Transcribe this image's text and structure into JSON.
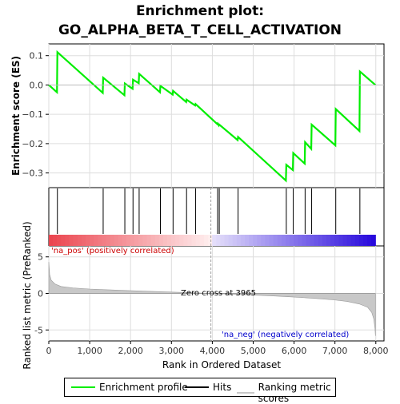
{
  "title_line1": "Enrichment plot:",
  "title_line2": "GO_ALPHA_BETA_T_CELL_ACTIVATION",
  "colors": {
    "es_line": "#00ee00",
    "hits": "#000000",
    "metric_fill": "#c8c8c8",
    "pos_label": "#cc0000",
    "neg_label": "#0000cc",
    "zero_line": "#a0a0a0"
  },
  "labels": {
    "pos": "'na_pos' (positively correlated)",
    "neg": "'na_neg' (negatively correlated)",
    "zero_cross": "Zero cross at 3965"
  },
  "legend": {
    "enrichment": "Enrichment profile",
    "hits": "Hits",
    "ranking": "Ranking metric scores"
  },
  "chart_data": [
    {
      "type": "line",
      "name": "enrichment-profile",
      "ylabel": "Enrichment score (ES)",
      "xlim": [
        0,
        8200
      ],
      "ylim": [
        -0.35,
        0.14
      ],
      "y_ticks": [
        0.1,
        0.0,
        -0.1,
        -0.2,
        -0.3
      ],
      "y_tick_labels": [
        "0.1",
        "0.0",
        "−0.1",
        "−0.2",
        "−0.3"
      ],
      "x": [
        0,
        200,
        210,
        1320,
        1330,
        1850,
        1860,
        2050,
        2060,
        2200,
        2210,
        2720,
        2730,
        3030,
        3040,
        3360,
        3370,
        3580,
        3590,
        4120,
        4130,
        4160,
        4170,
        4620,
        4630,
        5800,
        5810,
        5970,
        5980,
        6260,
        6270,
        6420,
        6430,
        7010,
        7020,
        7600,
        7610,
        7990
      ],
      "y": [
        0.0,
        -0.025,
        0.112,
        -0.027,
        0.025,
        -0.035,
        0.005,
        -0.013,
        0.018,
        0.006,
        0.038,
        -0.025,
        -0.003,
        -0.033,
        -0.02,
        -0.058,
        -0.05,
        -0.07,
        -0.065,
        -0.133,
        -0.131,
        -0.138,
        -0.135,
        -0.188,
        -0.177,
        -0.326,
        -0.272,
        -0.29,
        -0.232,
        -0.268,
        -0.195,
        -0.218,
        -0.135,
        -0.206,
        -0.082,
        -0.157,
        0.046,
        0.0
      ]
    },
    {
      "type": "scatter",
      "name": "hits",
      "x": [
        210,
        1330,
        1860,
        2060,
        2210,
        2730,
        3040,
        3370,
        3590,
        4130,
        4170,
        4630,
        5810,
        5980,
        6270,
        6430,
        7020,
        7610
      ]
    },
    {
      "type": "area",
      "name": "ranking-metric",
      "xlabel": "Rank in Ordered Dataset",
      "ylabel": "Ranked list metric (PreRanked)",
      "xlim": [
        0,
        8200
      ],
      "ylim": [
        -6.5,
        6.5
      ],
      "x_ticks": [
        0,
        1000,
        2000,
        3000,
        4000,
        5000,
        6000,
        7000,
        8000
      ],
      "x_tick_labels": [
        "0",
        "1,000",
        "2,000",
        "3,000",
        "4,000",
        "5,000",
        "6,000",
        "7,000",
        "8,000"
      ],
      "y_ticks": [
        5,
        0,
        -5
      ],
      "y_tick_labels": [
        "5",
        "0",
        "-5"
      ],
      "x": [
        0,
        20,
        60,
        150,
        300,
        600,
        1000,
        1500,
        2000,
        2500,
        3000,
        3500,
        3965,
        4500,
        5000,
        5500,
        6000,
        6500,
        7000,
        7300,
        7600,
        7800,
        7900,
        7950,
        7980,
        7990
      ],
      "y": [
        4.3,
        2.6,
        1.8,
        1.3,
        0.95,
        0.75,
        0.6,
        0.48,
        0.38,
        0.28,
        0.18,
        0.09,
        0.0,
        -0.1,
        -0.22,
        -0.35,
        -0.5,
        -0.68,
        -0.9,
        -1.1,
        -1.45,
        -1.9,
        -2.6,
        -3.5,
        -4.8,
        -5.8
      ]
    }
  ]
}
